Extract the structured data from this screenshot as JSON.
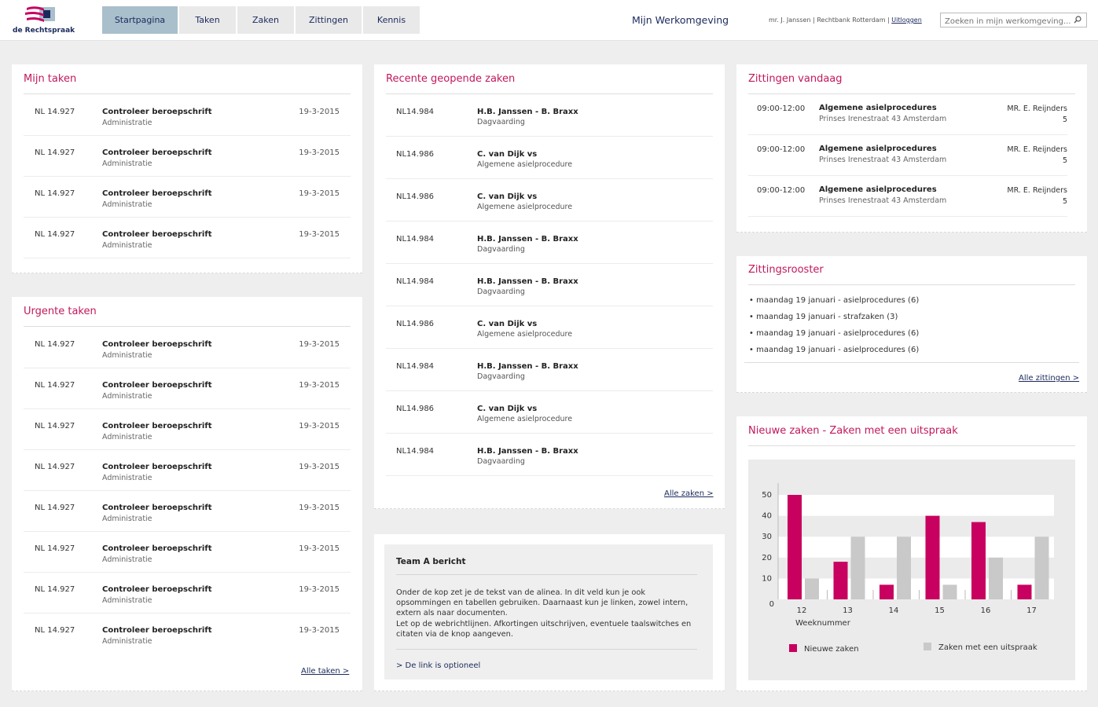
{
  "header": {
    "logo_text": "de Rechtspraak",
    "nav": [
      "Startpagina",
      "Taken",
      "Zaken",
      "Zittingen",
      "Kennis"
    ],
    "active_tab": "Startpagina",
    "workspace_title": "Mijn Werkomgeving",
    "user": "mr. J. Janssen",
    "court": "Rechtbank Rotterdam",
    "logout": "Uitloggen",
    "search_placeholder": "Zoeken in mijn werkomgeving..."
  },
  "mijn_taken": {
    "title": "Mijn taken",
    "rows": [
      {
        "num": "NL 14.927",
        "title": "Controleer beroepschrift",
        "sub": "Administratie",
        "date": "19-3-2015"
      },
      {
        "num": "NL 14.927",
        "title": "Controleer beroepschrift",
        "sub": "Administratie",
        "date": "19-3-2015"
      },
      {
        "num": "NL 14.927",
        "title": "Controleer beroepschrift",
        "sub": "Administratie",
        "date": "19-3-2015"
      },
      {
        "num": "NL 14.927",
        "title": "Controleer beroepschrift",
        "sub": "Administratie",
        "date": "19-3-2015"
      }
    ]
  },
  "urgente_taken": {
    "title": "Urgente taken",
    "link": "Alle taken >",
    "rows": [
      {
        "num": "NL 14.927",
        "title": "Controleer beroepschrift",
        "sub": "Administratie",
        "date": "19-3-2015"
      },
      {
        "num": "NL 14.927",
        "title": "Controleer beroepschrift",
        "sub": "Administratie",
        "date": "19-3-2015"
      },
      {
        "num": "NL 14.927",
        "title": "Controleer beroepschrift",
        "sub": "Administratie",
        "date": "19-3-2015"
      },
      {
        "num": "NL 14.927",
        "title": "Controleer beroepschrift",
        "sub": "Administratie",
        "date": "19-3-2015"
      },
      {
        "num": "NL 14.927",
        "title": "Controleer beroepschrift",
        "sub": "Administratie",
        "date": "19-3-2015"
      },
      {
        "num": "NL 14.927",
        "title": "Controleer beroepschrift",
        "sub": "Administratie",
        "date": "19-3-2015"
      },
      {
        "num": "NL 14.927",
        "title": "Controleer beroepschrift",
        "sub": "Administratie",
        "date": "19-3-2015"
      },
      {
        "num": "NL 14.927",
        "title": "Controleer beroepschrift",
        "sub": "Administratie",
        "date": "19-3-2015"
      }
    ]
  },
  "recente_zaken": {
    "title": "Recente geopende zaken",
    "link": "Alle zaken >",
    "rows": [
      {
        "num": "NL14.984",
        "title": "H.B. Janssen - B. Braxx",
        "sub": "Dagvaarding"
      },
      {
        "num": "NL14.986",
        "title": "C. van Dijk vs",
        "sub": "Algemene asielprocedure"
      },
      {
        "num": "NL14.986",
        "title": "C. van Dijk vs",
        "sub": "Algemene asielprocedure"
      },
      {
        "num": "NL14.984",
        "title": "H.B. Janssen - B. Braxx",
        "sub": "Dagvaarding"
      },
      {
        "num": "NL14.984",
        "title": "H.B. Janssen - B. Braxx",
        "sub": "Dagvaarding"
      },
      {
        "num": "NL14.986",
        "title": "C. van Dijk vs",
        "sub": "Algemene asielprocedure"
      },
      {
        "num": "NL14.984",
        "title": "H.B. Janssen - B. Braxx",
        "sub": "Dagvaarding"
      },
      {
        "num": "NL14.986",
        "title": "C. van Dijk vs",
        "sub": "Algemene asielprocedure"
      },
      {
        "num": "NL14.984",
        "title": "H.B. Janssen - B. Braxx",
        "sub": "Dagvaarding"
      }
    ]
  },
  "team_bericht": {
    "title": "Team A bericht",
    "body": "Onder de kop zet je de tekst van de alinea. In dit veld kun je ook opsommingen en tabellen gebruiken. Daarnaast kun je linken, zowel intern, extern als naar documenten.\nLet op de webrichtlijnen. Afkortingen uitschrijven, eventuele taalswitches en citaten via de knop aangeven.",
    "link": "> De link is optioneel"
  },
  "zittingen_vandaag": {
    "title": "Zittingen vandaag",
    "rows": [
      {
        "time": "09:00-12:00",
        "title": "Algemene asielprocedures",
        "sub": "Prinses Irenestraat 43 Amsterdam",
        "judge": "MR. E. Reijnders",
        "count": "5"
      },
      {
        "time": "09:00-12:00",
        "title": "Algemene asielprocedures",
        "sub": "Prinses Irenestraat 43 Amsterdam",
        "judge": "MR. E. Reijnders",
        "count": "5"
      },
      {
        "time": "09:00-12:00",
        "title": "Algemene asielprocedures",
        "sub": "Prinses Irenestraat 43 Amsterdam",
        "judge": "MR. E. Reijnders",
        "count": "5"
      }
    ]
  },
  "zittingsrooster": {
    "title": "Zittingsrooster",
    "items": [
      "• maandag 19 januari - asielprocedures (6)",
      "• maandag 19 januari - strafzaken (3)",
      "• maandag 19 januari - asielprocedures (6)",
      "• maandag 19 januari - asielprocedures (6)"
    ],
    "link": "Alle zittingen >"
  },
  "nieuwe_zaken": {
    "title": "Nieuwe zaken - Zaken met een uitspraak"
  },
  "colors": {
    "accent": "#c2185b",
    "navy": "#1b2a5c",
    "nav_active": "#a9bfcb",
    "bar_new": "#c8005f",
    "bar_verdict": "#c9c9c9"
  },
  "chart_data": {
    "type": "bar",
    "title": "Nieuwe zaken - Zaken met een uitspraak",
    "xlabel": "Weeknummer",
    "ylabel": "",
    "categories": [
      "12",
      "13",
      "14",
      "15",
      "16",
      "17"
    ],
    "yticks": [
      0,
      10,
      20,
      30,
      40,
      50
    ],
    "ylim": [
      0,
      50
    ],
    "legend_position": "bottom",
    "series": [
      {
        "name": "Nieuwe zaken",
        "color": "#c8005f",
        "values": [
          50,
          18,
          7,
          40,
          37,
          7
        ]
      },
      {
        "name": "Zaken met een uitspraak",
        "color": "#c9c9c9",
        "values": [
          10,
          30,
          30,
          7,
          20,
          30
        ]
      }
    ]
  }
}
